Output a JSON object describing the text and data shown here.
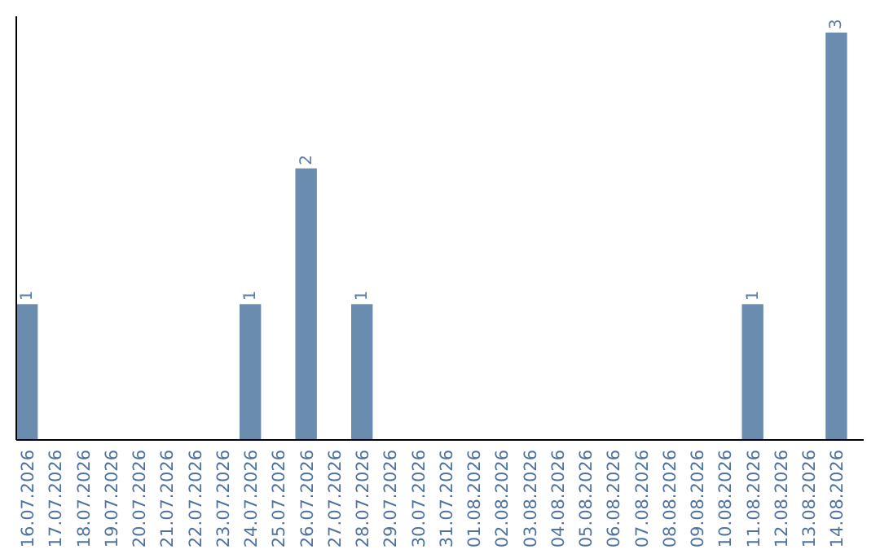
{
  "chart_data": {
    "type": "bar",
    "categories": [
      "16.07.2026",
      "17.07.2026",
      "18.07.2026",
      "19.07.2026",
      "20.07.2026",
      "21.07.2026",
      "22.07.2026",
      "23.07.2026",
      "24.07.2026",
      "25.07.2026",
      "26.07.2026",
      "27.07.2026",
      "28.07.2026",
      "29.07.2026",
      "30.07.2026",
      "31.07.2026",
      "01.08.2026",
      "02.08.2026",
      "03.08.2026",
      "04.08.2026",
      "05.08.2026",
      "06.08.2026",
      "07.08.2026",
      "08.08.2026",
      "09.08.2026",
      "10.08.2026",
      "11.08.2026",
      "12.08.2026",
      "13.08.2026",
      "14.08.2026"
    ],
    "values": [
      1,
      0,
      0,
      0,
      0,
      0,
      0,
      0,
      1,
      0,
      2,
      0,
      1,
      0,
      0,
      0,
      0,
      0,
      0,
      0,
      0,
      0,
      0,
      0,
      0,
      0,
      1,
      0,
      0,
      3
    ],
    "value_labels": [
      "1",
      null,
      null,
      null,
      null,
      null,
      null,
      null,
      "1",
      null,
      "2",
      null,
      "1",
      null,
      null,
      null,
      null,
      null,
      null,
      null,
      null,
      null,
      null,
      null,
      null,
      null,
      "1",
      null,
      null,
      "3"
    ],
    "color": "#6a8caf",
    "ylim": [
      0,
      3
    ],
    "tick_labels": "x"
  }
}
